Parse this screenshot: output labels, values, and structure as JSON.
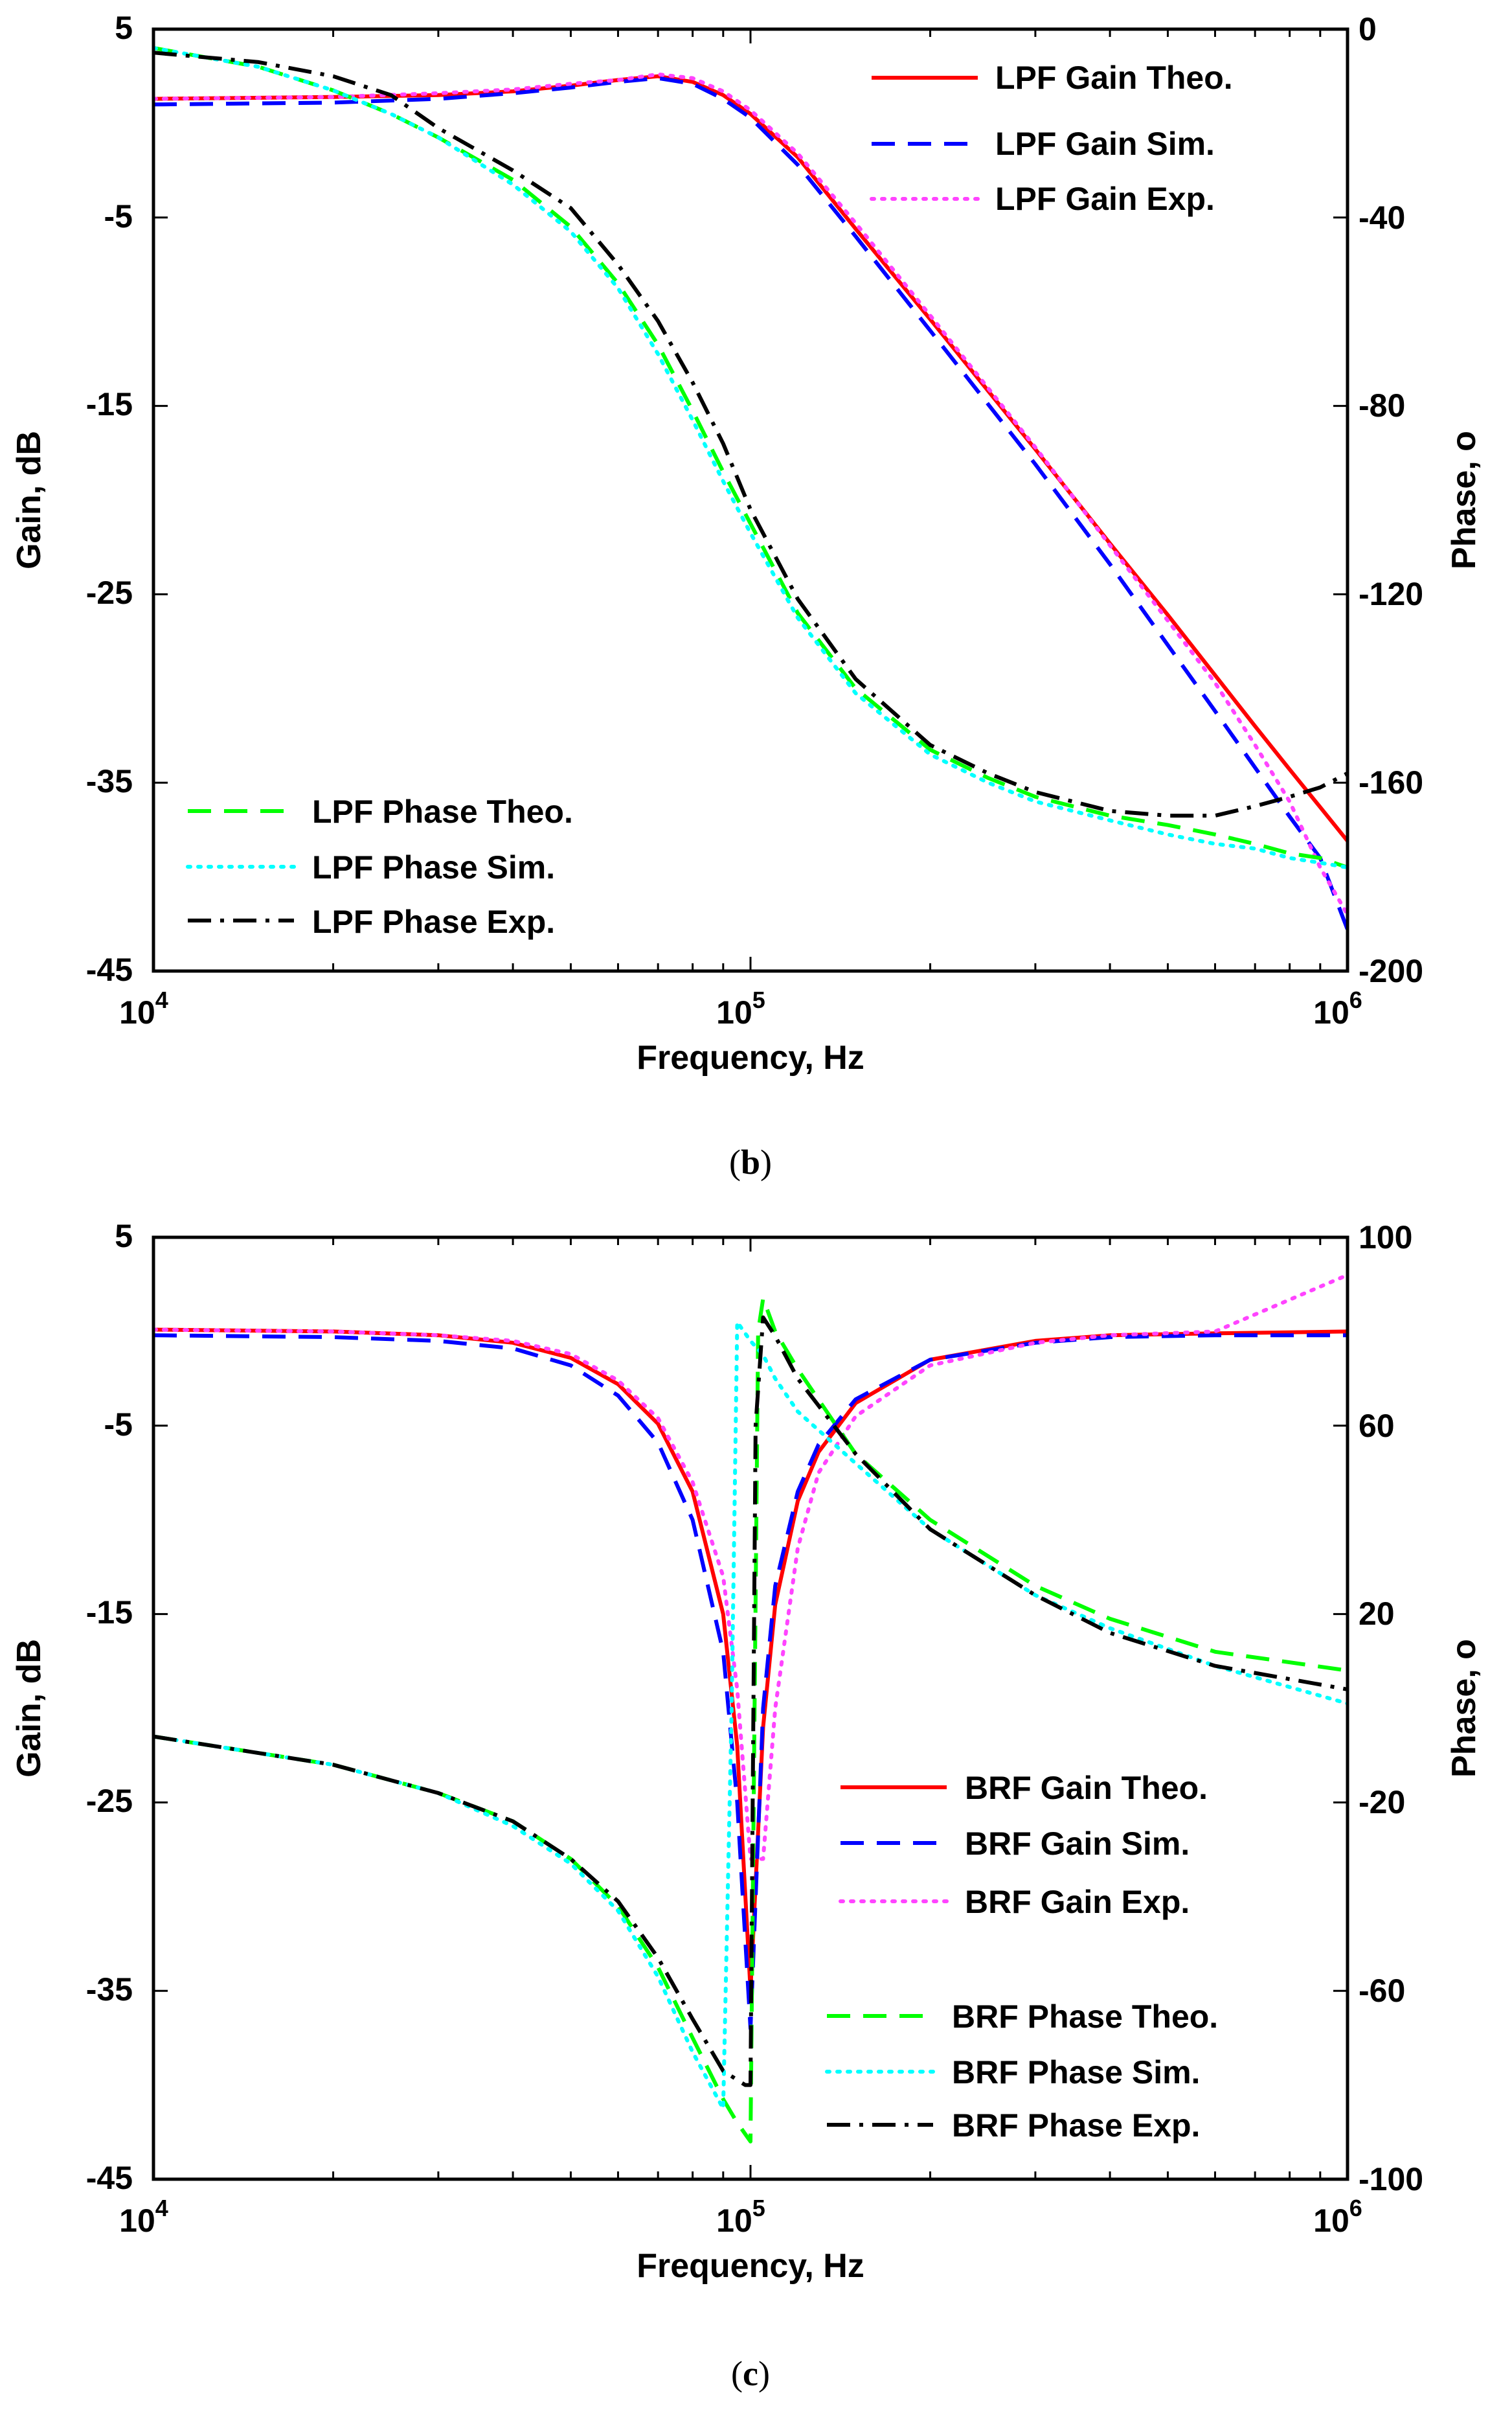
{
  "figure": {
    "panels": [
      {
        "caption_letter": "b",
        "chart_data": {
          "type": "line",
          "title": "",
          "xlabel": "Frequency, Hz",
          "ylabel": "Gain, dB",
          "y2label": "Phase, o",
          "xscale": "log",
          "xlim": [
            10000,
            1000000
          ],
          "ylim": [
            -45,
            5
          ],
          "y2lim": [
            -200,
            0
          ],
          "x_ticks": [
            {
              "base": "10",
              "exp": "4"
            },
            {
              "base": "10",
              "exp": "5"
            },
            {
              "base": "10",
              "exp": "6"
            }
          ],
          "y_ticks": [
            "5",
            "-5",
            "-15",
            "-25",
            "-35",
            "-45"
          ],
          "y2_ticks": [
            "0",
            "-40",
            "-80",
            "-120",
            "-160",
            "-200"
          ],
          "legends": [
            {
              "placement": "top-right",
              "entries": [
                "LPF Gain Theo.",
                "LPF Gain Sim.",
                "LPF Gain Exp."
              ]
            },
            {
              "placement": "bottom-left",
              "entries": [
                "LPF Phase Theo.",
                "LPF Phase Sim.",
                "LPF Phase Exp."
              ]
            }
          ],
          "series": [
            {
              "name": "LPF Gain Theo.",
              "axis": "left",
              "color": "#ff0000",
              "dash": "solid",
              "x": [
                10000,
                20000,
                30000,
                40000,
                50000,
                60000,
                70000,
                80000,
                90000,
                100000,
                120000,
                150000,
                200000,
                300000,
                400000,
                500000,
                600000,
                700000,
                800000,
                900000,
                1000000
              ],
              "y": [
                1.3,
                1.4,
                1.5,
                1.7,
                2.0,
                2.3,
                2.5,
                2.2,
                1.5,
                0.5,
                -1.8,
                -5.6,
                -10.4,
                -17.3,
                -22.3,
                -26.1,
                -29.3,
                -32.0,
                -34.3,
                -36.3,
                -38.1
              ]
            },
            {
              "name": "LPF Gain Sim.",
              "axis": "left",
              "color": "#0000ff",
              "dash": "dashed",
              "x": [
                10000,
                20000,
                30000,
                40000,
                50000,
                60000,
                70000,
                80000,
                90000,
                100000,
                120000,
                150000,
                200000,
                300000,
                400000,
                500000,
                600000,
                700000,
                800000,
                900000,
                1000000
              ],
              "y": [
                1.0,
                1.1,
                1.3,
                1.6,
                1.9,
                2.2,
                2.4,
                2.1,
                1.3,
                0.3,
                -2.2,
                -6.0,
                -11.0,
                -18.1,
                -23.4,
                -27.7,
                -31.2,
                -34.2,
                -36.8,
                -39.0,
                -42.8
              ]
            },
            {
              "name": "LPF Gain Exp.",
              "axis": "left",
              "color": "#ff44ff",
              "dash": "dotted",
              "x": [
                10000,
                20000,
                30000,
                40000,
                50000,
                60000,
                70000,
                80000,
                90000,
                100000,
                120000,
                150000,
                200000,
                300000,
                400000,
                500000,
                600000,
                700000,
                800000,
                900000,
                1000000
              ],
              "y": [
                1.3,
                1.4,
                1.6,
                1.8,
                2.1,
                2.3,
                2.6,
                2.4,
                1.7,
                0.7,
                -1.6,
                -5.3,
                -10.2,
                -17.2,
                -22.4,
                -26.4,
                -29.7,
                -33.0,
                -36.0,
                -39.5,
                -42.0
              ]
            },
            {
              "name": "LPF Phase Theo.",
              "axis": "right",
              "color": "#00ff00",
              "dash": "dashed",
              "x": [
                10000,
                15000,
                20000,
                25000,
                30000,
                40000,
                50000,
                60000,
                70000,
                80000,
                90000,
                100000,
                120000,
                150000,
                200000,
                250000,
                300000,
                400000,
                500000,
                600000,
                700000,
                800000,
                900000,
                1000000
              ],
              "y": [
                -4,
                -8,
                -13,
                -18,
                -23,
                -32,
                -42,
                -54,
                -67,
                -81,
                -94,
                -105,
                -124,
                -140,
                -153,
                -159,
                -163,
                -167,
                -169,
                -171,
                -173,
                -175,
                -176,
                -178
              ]
            },
            {
              "name": "LPF Phase Sim.",
              "axis": "right",
              "color": "#00ffff",
              "dash": "dotted",
              "x": [
                10000,
                15000,
                20000,
                25000,
                30000,
                40000,
                50000,
                60000,
                70000,
                80000,
                90000,
                100000,
                120000,
                150000,
                200000,
                250000,
                300000,
                400000,
                500000,
                600000,
                700000,
                800000,
                900000,
                1000000
              ],
              "y": [
                -4,
                -8,
                -13,
                -18,
                -23,
                -33,
                -43,
                -55,
                -69,
                -83,
                -96,
                -107,
                -125,
                -141,
                -154,
                -160,
                -164,
                -168,
                -171,
                -173,
                -174,
                -176,
                -177,
                -178
              ]
            },
            {
              "name": "LPF Phase Exp.",
              "axis": "right",
              "color": "#000000",
              "dash": "dashdot",
              "x": [
                10000,
                15000,
                20000,
                25000,
                30000,
                40000,
                50000,
                60000,
                70000,
                80000,
                90000,
                100000,
                120000,
                150000,
                200000,
                250000,
                300000,
                400000,
                500000,
                600000,
                700000,
                800000,
                900000,
                1000000
              ],
              "y": [
                -5,
                -7,
                -10,
                -14,
                -21,
                -30,
                -38,
                -50,
                -62,
                -75,
                -88,
                -102,
                -121,
                -138,
                -152,
                -158,
                -162,
                -166,
                -167,
                -167,
                -165,
                -163,
                -161,
                -158
              ]
            }
          ]
        }
      },
      {
        "caption_letter": "c",
        "chart_data": {
          "type": "line",
          "title": "",
          "xlabel": "Frequency, Hz",
          "ylabel": "Gain, dB",
          "y2label": "Phase, o",
          "xscale": "log",
          "xlim": [
            10000,
            1000000
          ],
          "ylim": [
            -45,
            5
          ],
          "y2lim": [
            -100,
            100
          ],
          "x_ticks": [
            {
              "base": "10",
              "exp": "4"
            },
            {
              "base": "10",
              "exp": "5"
            },
            {
              "base": "10",
              "exp": "6"
            }
          ],
          "y_ticks": [
            "5",
            "-5",
            "-15",
            "-25",
            "-35",
            "-45"
          ],
          "y2_ticks": [
            "100",
            "60",
            "20",
            "-20",
            "-60",
            "-100"
          ],
          "legends": [
            {
              "placement": "right",
              "entries": [
                "BRF Gain Theo.",
                "BRF Gain Sim.",
                "BRF Gain Exp."
              ]
            },
            {
              "placement": "bottom-right",
              "entries": [
                "BRF Phase Theo.",
                "BRF Phase Sim.",
                "BRF Phase Exp."
              ]
            }
          ],
          "series": [
            {
              "name": "BRF Gain Theo.",
              "axis": "left",
              "color": "#ff0000",
              "dash": "solid",
              "x": [
                10000,
                20000,
                30000,
                40000,
                50000,
                60000,
                70000,
                80000,
                90000,
                95000,
                100000,
                105000,
                110000,
                120000,
                130000,
                150000,
                200000,
                300000,
                400000,
                600000,
                1000000
              ],
              "y": [
                0.1,
                0.0,
                -0.2,
                -0.6,
                -1.4,
                -2.8,
                -4.9,
                -8.5,
                -15.0,
                -22.0,
                -35.0,
                -21.0,
                -14.5,
                -9.0,
                -6.4,
                -3.8,
                -1.5,
                -0.5,
                -0.2,
                -0.1,
                0.0
              ]
            },
            {
              "name": "BRF Gain Sim.",
              "axis": "left",
              "color": "#0000ff",
              "dash": "dashed",
              "x": [
                10000,
                20000,
                30000,
                40000,
                50000,
                60000,
                70000,
                80000,
                90000,
                95000,
                100000,
                105000,
                110000,
                120000,
                130000,
                150000,
                200000,
                300000,
                400000,
                600000,
                1000000
              ],
              "y": [
                -0.2,
                -0.3,
                -0.5,
                -0.9,
                -1.8,
                -3.4,
                -5.9,
                -10.0,
                -17.0,
                -25.0,
                -37.0,
                -20.0,
                -13.5,
                -8.5,
                -6.0,
                -3.6,
                -1.5,
                -0.6,
                -0.3,
                -0.2,
                -0.2
              ]
            },
            {
              "name": "BRF Gain Exp.",
              "axis": "left",
              "color": "#ff44ff",
              "dash": "dotted",
              "x": [
                10000,
                20000,
                30000,
                40000,
                50000,
                60000,
                70000,
                80000,
                90000,
                95000,
                100000,
                105000,
                110000,
                120000,
                130000,
                150000,
                200000,
                300000,
                400000,
                600000,
                1000000
              ],
              "y": [
                0.1,
                0.0,
                -0.2,
                -0.5,
                -1.2,
                -2.6,
                -4.6,
                -8.0,
                -13.0,
                -19.0,
                -28.0,
                -28.0,
                -20.0,
                -11.5,
                -7.5,
                -4.5,
                -1.8,
                -0.6,
                -0.2,
                0.0,
                3.0
              ]
            },
            {
              "name": "BRF Phase Theo.",
              "axis": "right",
              "color": "#00ff00",
              "dash": "dashed",
              "x": [
                10000,
                20000,
                30000,
                40000,
                50000,
                60000,
                70000,
                80000,
                90000,
                95000,
                100000,
                103000,
                105000,
                110000,
                120000,
                150000,
                200000,
                300000,
                400000,
                600000,
                1000000
              ],
              "y": [
                -6,
                -12,
                -18,
                -24,
                -32,
                -42,
                -55,
                -70,
                -83,
                -88,
                -92,
                80,
                87,
                80,
                72,
                54,
                40,
                26,
                19,
                12,
                8
              ]
            },
            {
              "name": "BRF Phase Sim.",
              "axis": "right",
              "color": "#00ffff",
              "dash": "dotted",
              "x": [
                10000,
                20000,
                30000,
                40000,
                50000,
                60000,
                70000,
                80000,
                90000,
                93000,
                95000,
                100000,
                105000,
                110000,
                120000,
                150000,
                200000,
                300000,
                400000,
                600000,
                1000000
              ],
              "y": [
                -6,
                -12,
                -18,
                -25,
                -33,
                -43,
                -57,
                -73,
                -85,
                0,
                82,
                78,
                75,
                70,
                63,
                52,
                38,
                24,
                17,
                9,
                1
              ]
            },
            {
              "name": "BRF Phase Exp.",
              "axis": "right",
              "color": "#000000",
              "dash": "dashdot",
              "x": [
                10000,
                20000,
                30000,
                40000,
                50000,
                60000,
                70000,
                80000,
                90000,
                98000,
                100000,
                102000,
                105000,
                110000,
                120000,
                150000,
                200000,
                300000,
                400000,
                600000,
                1000000
              ],
              "y": [
                -6,
                -12,
                -18,
                -24,
                -32,
                -41,
                -53,
                -66,
                -77,
                -80,
                -80,
                60,
                83,
                79,
                70,
                54,
                38,
                24,
                16,
                9,
                4
              ]
            }
          ]
        }
      }
    ]
  }
}
